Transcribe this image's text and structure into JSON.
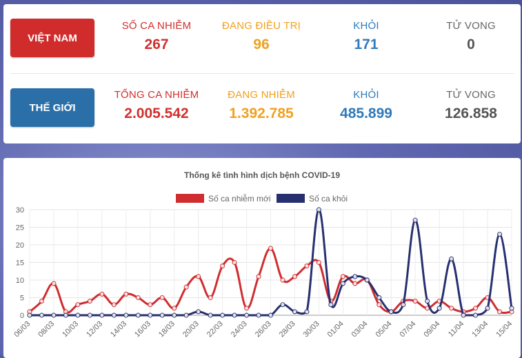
{
  "vietnam": {
    "region_label": "VIỆT NAM",
    "stats": [
      {
        "label": "SỐ CA NHIỄM",
        "value": "267"
      },
      {
        "label": "ĐANG ĐIỀU TRỊ",
        "value": "96"
      },
      {
        "label": "KHỎI",
        "value": "171"
      },
      {
        "label": "TỬ VONG",
        "value": "0"
      }
    ]
  },
  "world": {
    "region_label": "THẾ GIỚI",
    "stats": [
      {
        "label": "TỔNG CA NHIỄM",
        "value": "2.005.542"
      },
      {
        "label": "ĐANG NHIỄM",
        "value": "1.392.785"
      },
      {
        "label": "KHỎI",
        "value": "485.899"
      },
      {
        "label": "TỬ VONG",
        "value": "126.858"
      }
    ]
  },
  "colors": {
    "red": "#cf2c2b",
    "orange": "#f0a01f",
    "blue": "#2f7ab9",
    "gray": "#555555",
    "series_new": "#cf2d30",
    "series_recovered": "#27306f"
  },
  "chart_data": {
    "type": "line",
    "title": "Thống kê tình hình dịch bệnh COVID-19",
    "xlabel": "",
    "ylabel": "",
    "ylim": [
      0,
      30
    ],
    "yticks": [
      0,
      5,
      10,
      15,
      20,
      25,
      30
    ],
    "grid": true,
    "legend": "top-center",
    "categories": [
      "06/03",
      "07/03",
      "08/03",
      "09/03",
      "10/03",
      "11/03",
      "12/03",
      "13/03",
      "14/03",
      "15/03",
      "16/03",
      "17/03",
      "18/03",
      "19/03",
      "20/03",
      "21/03",
      "22/03",
      "23/03",
      "24/03",
      "25/03",
      "26/03",
      "27/03",
      "28/03",
      "29/03",
      "30/03",
      "31/03",
      "01/04",
      "02/04",
      "03/04",
      "04/04",
      "05/04",
      "06/04",
      "07/04",
      "08/04",
      "09/04",
      "10/04",
      "11/04",
      "12/04",
      "13/04",
      "14/04",
      "15/04"
    ],
    "tick_labels": [
      "06/03",
      "08/03",
      "10/03",
      "12/03",
      "14/03",
      "16/03",
      "18/03",
      "20/03",
      "22/03",
      "24/03",
      "26/03",
      "28/03",
      "30/03",
      "01/04",
      "03/04",
      "05/04",
      "07/04",
      "09/04",
      "11/04",
      "13/04",
      "15/04"
    ],
    "series": [
      {
        "name": "Số ca nhiễm mới",
        "values": [
          1,
          4,
          9,
          1,
          3,
          4,
          6,
          3,
          6,
          5,
          3,
          5,
          2,
          8,
          11,
          5,
          14,
          15,
          2,
          11,
          19,
          10,
          11,
          14,
          15,
          4,
          11,
          9,
          10,
          3,
          1,
          4,
          4,
          2,
          4,
          2,
          1,
          2,
          5,
          1,
          1
        ]
      },
      {
        "name": "Số ca khỏi",
        "values": [
          0,
          0,
          0,
          0,
          0,
          0,
          0,
          0,
          0,
          0,
          0,
          0,
          0,
          0,
          1,
          0,
          0,
          0,
          0,
          0,
          0,
          3,
          1,
          1,
          30,
          3,
          9,
          11,
          10,
          5,
          1,
          3,
          27,
          4,
          2,
          16,
          0,
          0,
          2,
          23,
          2
        ]
      }
    ]
  }
}
